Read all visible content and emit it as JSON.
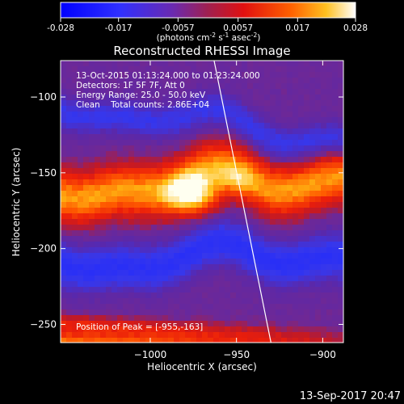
{
  "chart_data": {
    "type": "heatmap",
    "title": "Reconstructed RHESSI Image",
    "xlabel": "Heliocentric X (arcsec)",
    "ylabel": "Heliocentric Y (arcsec)",
    "xlim": [
      -1052,
      -888
    ],
    "ylim": [
      -262,
      -76
    ],
    "x_ticks": [
      -1000,
      -950,
      -900
    ],
    "y_ticks": [
      -100,
      -150,
      -200,
      -250
    ],
    "colorbar": {
      "min": -0.028,
      "max": 0.028,
      "ticks": [
        -0.028,
        -0.017,
        -0.0057,
        0.0057,
        0.017,
        0.028
      ],
      "tick_labels": [
        "-0.028",
        "-0.017",
        "-0.0057",
        "0.0057",
        "0.017",
        "0.028"
      ],
      "label_main": "(photons cm",
      "label_exp1": "-2",
      "label_mid": " s",
      "label_exp2": "-1",
      "label_mid2": " asec",
      "label_exp3": "-2",
      "label_end": ")"
    },
    "annotations": {
      "time_range": "13-Oct-2015 01:13:24.000 to 01:23:24.000",
      "detectors": "Detectors: 1F 5F 7F, Att 0",
      "energy": "Energy Range: 25.0 - 50.0 keV",
      "clean": "Clean    Total counts: 2.86E+04",
      "peak": "Position of Peak = [-955,-163]"
    },
    "peak": {
      "x": -955,
      "y": -163
    },
    "limb_line": [
      [
        -963,
        -76
      ],
      [
        -930,
        -262
      ]
    ],
    "colors": {
      "background": "#000000",
      "axes": "#ffffff",
      "low": "#2020ff",
      "mid": "#5a2090",
      "high": "#ff4000",
      "peak": "#fffff0"
    }
  },
  "footer": {
    "timestamp": "13-Sep-2017 20:47"
  }
}
